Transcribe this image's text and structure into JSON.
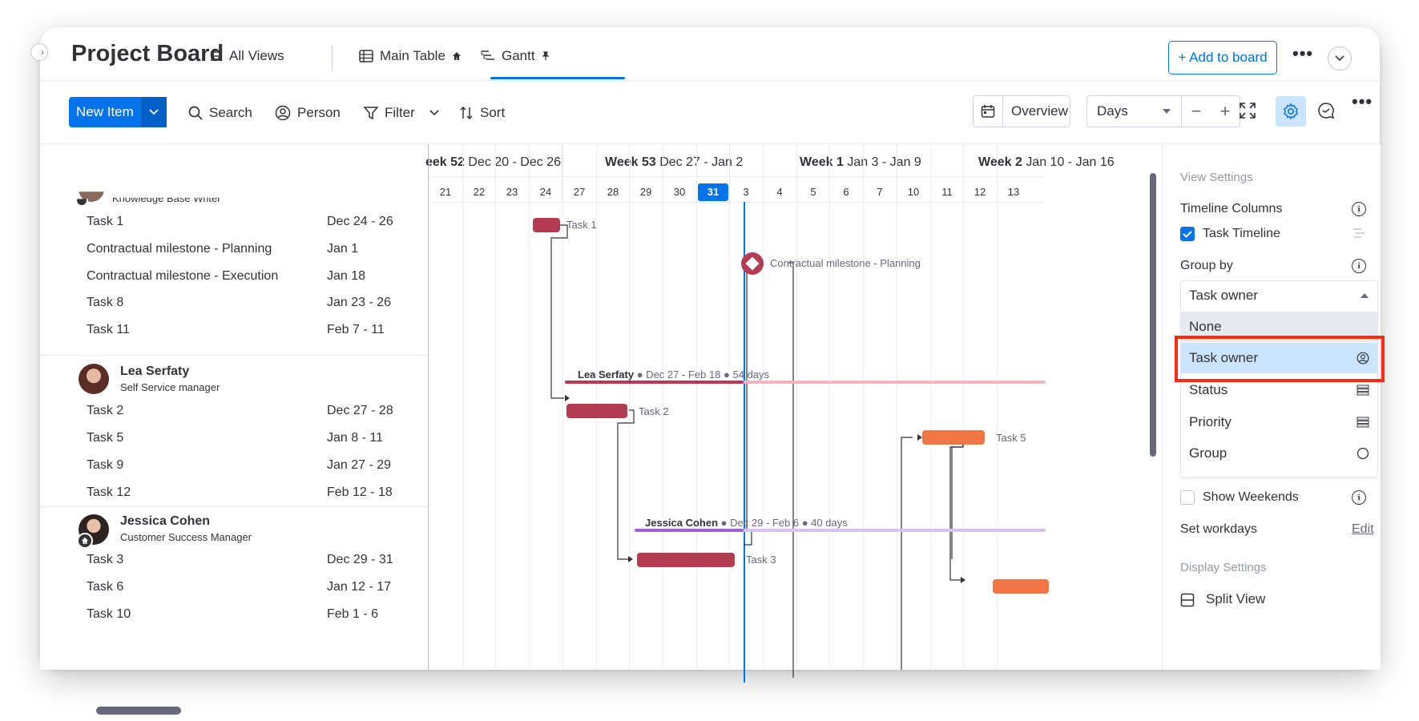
{
  "header": {
    "title": "Project Board",
    "tabs": [
      {
        "label": "All Views"
      },
      {
        "label": "Main Table"
      },
      {
        "label": "Gantt"
      }
    ],
    "add_to_board": "+ Add to board"
  },
  "toolbar": {
    "new_item": "New Item",
    "search": "Search",
    "person": "Person",
    "filter": "Filter",
    "sort": "Sort",
    "overview": "Overview",
    "zoom_select": "Days",
    "zoom_minus": "−",
    "zoom_plus": "+"
  },
  "groups": [
    {
      "owner_role_partial": "Knowledge Base Writer",
      "tasks": [
        {
          "name": "Task 1",
          "dates": "Dec 24 - 26"
        },
        {
          "name": "Contractual milestone - Planning",
          "dates": "Jan 1"
        },
        {
          "name": "Contractual milestone - Execution",
          "dates": "Jan 18"
        },
        {
          "name": "Task 8",
          "dates": "Jan 23 - 26"
        },
        {
          "name": "Task 11",
          "dates": "Feb 7 - 11"
        }
      ]
    },
    {
      "owner": "Lea Serfaty",
      "role": "Self Service manager",
      "summary_name": "Lea Serfaty",
      "summary_rest": "● Dec 27 - Feb 18 ● 54 days",
      "tasks": [
        {
          "name": "Task 2",
          "dates": "Dec 27 - 28"
        },
        {
          "name": "Task 5",
          "dates": "Jan 8 - 11"
        },
        {
          "name": "Task 9",
          "dates": "Jan 27 - 29"
        },
        {
          "name": "Task 12",
          "dates": "Feb 12 - 18"
        }
      ]
    },
    {
      "owner": "Jessica Cohen",
      "role": "Customer Success Manager",
      "summary_name": "Jessica Cohen",
      "summary_rest": "● Dec 29 - Feb 6 ● 40 days",
      "tasks": [
        {
          "name": "Task 3",
          "dates": "Dec 29 - 31"
        },
        {
          "name": "Task 6",
          "dates": "Jan 12 - 17"
        },
        {
          "name": "Task 10",
          "dates": "Feb 1 - 6"
        }
      ]
    }
  ],
  "timeline": {
    "weeks": [
      {
        "bold": "eek 52",
        "range": "Dec 20 - Dec 26"
      },
      {
        "bold": "Week 53",
        "range": "Dec 27 - Jan 2"
      },
      {
        "bold": "Week 1",
        "range": "Jan 3 - Jan 9"
      },
      {
        "bold": "Week 2",
        "range": "Jan 10 - Jan 16"
      }
    ],
    "days": [
      "21",
      "22",
      "23",
      "24",
      "27",
      "28",
      "29",
      "30",
      "31",
      "3",
      "4",
      "5",
      "6",
      "7",
      "10",
      "11",
      "12",
      "13"
    ],
    "today": "31",
    "bar_labels": {
      "task1": "Task 1",
      "milestone": "Contractual milestone - Planning",
      "task2": "Task 2",
      "task5": "Task 5",
      "task3": "Task 3"
    }
  },
  "settings": {
    "view_settings": "View Settings",
    "timeline_columns": "Timeline Columns",
    "task_timeline": "Task Timeline",
    "group_by": "Group by",
    "group_by_selected": "Task owner",
    "group_by_options": [
      "None",
      "Task owner",
      "Status",
      "Priority",
      "Group"
    ],
    "show_weekends": "Show Weekends",
    "set_workdays": "Set workdays",
    "edit": "Edit",
    "display_settings": "Display Settings",
    "split_view": "Split View"
  },
  "colors": {
    "accent": "#0073ea",
    "task_red": "#b33b52",
    "task_orange": "#f07745",
    "lea_line": "#f3b6c0",
    "jessica_line": "#a25ddc",
    "highlight": "#ff2a12"
  }
}
